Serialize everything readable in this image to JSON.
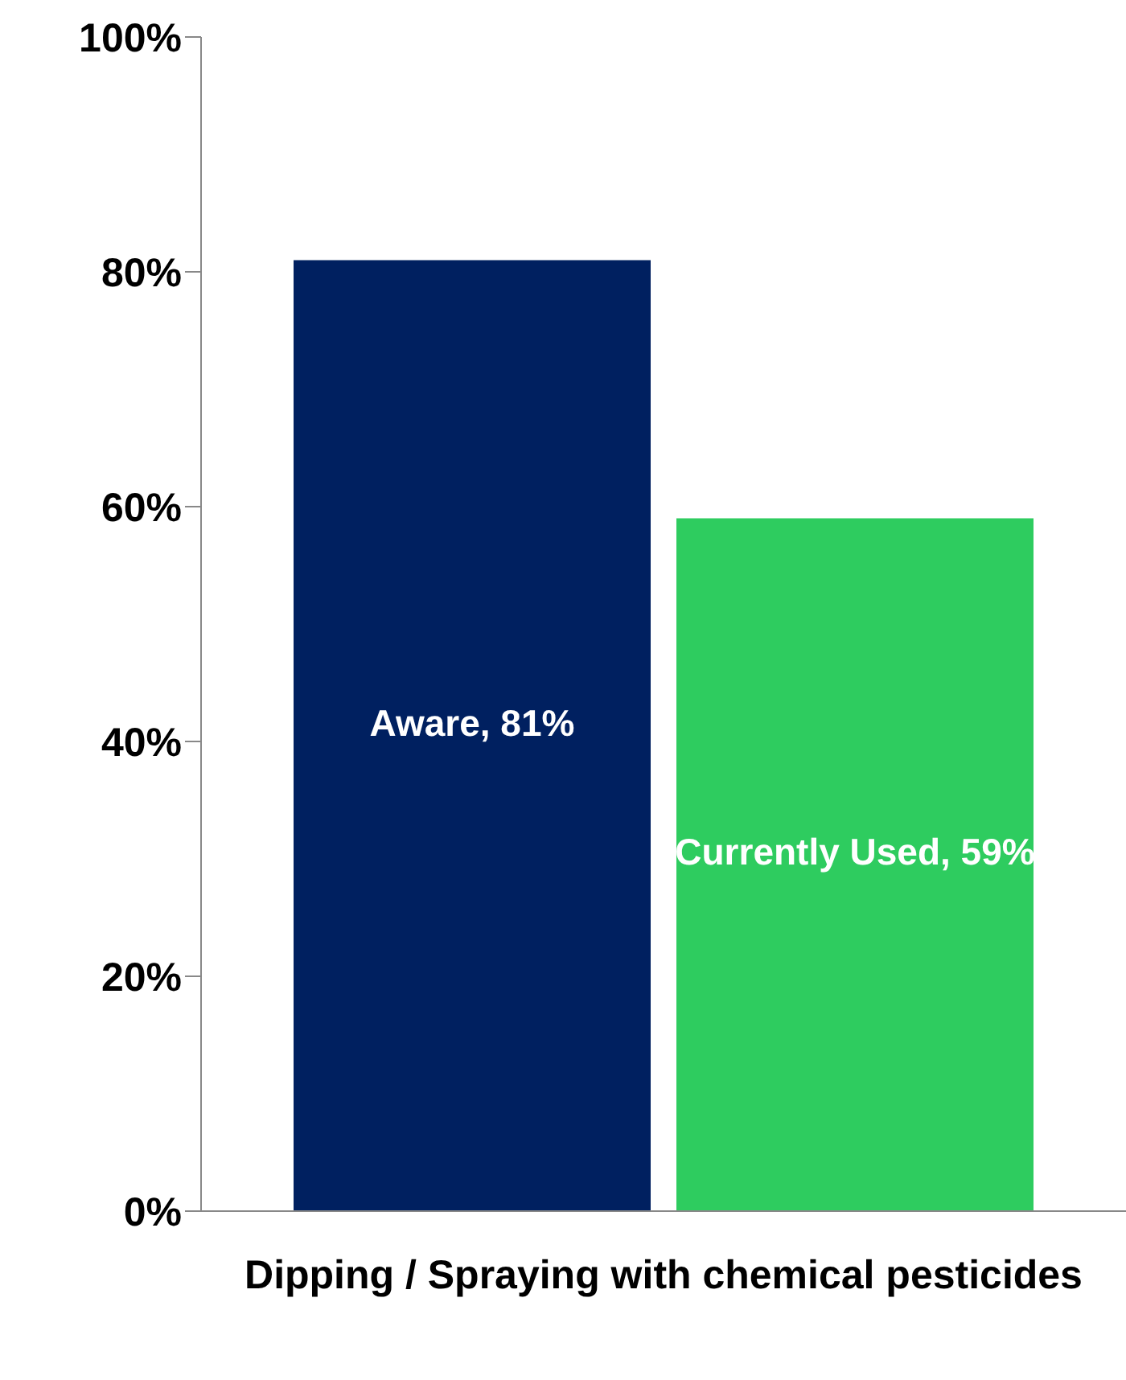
{
  "chart_data": {
    "type": "bar",
    "categories": [
      "Dipping / Spraying with chemical pesticides"
    ],
    "series": [
      {
        "color": "#002060",
        "values": [
          81
        ],
        "value_labels": [
          "Aware, 81%"
        ]
      },
      {
        "color": "#2ecc5f",
        "values": [
          59
        ],
        "value_labels": [
          "Currently Used, 59%"
        ]
      }
    ],
    "ylim": [
      0,
      100
    ],
    "yticks": [
      {
        "value": 0,
        "label": "0%"
      },
      {
        "value": 20,
        "label": "20%"
      },
      {
        "value": 40,
        "label": "40%"
      },
      {
        "value": 60,
        "label": "60%"
      },
      {
        "value": 80,
        "label": "80%"
      },
      {
        "value": 100,
        "label": "100%"
      }
    ],
    "grid": false,
    "legend": false
  }
}
